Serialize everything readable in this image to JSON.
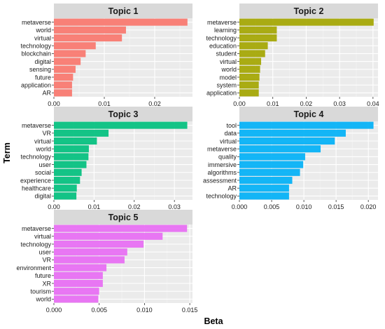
{
  "chart_data": {
    "type": "bar",
    "orientation": "horizontal",
    "xlabel": "Beta",
    "ylabel": "Term",
    "grid": true,
    "panels": [
      {
        "title": "Topic 1",
        "color": "#F8766D",
        "xlim": [
          0,
          0.0275
        ],
        "ticks": [
          0.0,
          0.01,
          0.02
        ],
        "tick_labels": [
          "0.00",
          "0.01",
          "0.02"
        ],
        "categories": [
          "metaverse",
          "world",
          "virtual",
          "technology",
          "blockchain",
          "digital",
          "sensing",
          "future",
          "application",
          "AR"
        ],
        "values": [
          0.0265,
          0.0143,
          0.0135,
          0.0083,
          0.0063,
          0.0053,
          0.0043,
          0.0038,
          0.0036,
          0.0036
        ]
      },
      {
        "title": "Topic 2",
        "color": "#A3A500",
        "xlim": [
          0,
          0.0415
        ],
        "ticks": [
          0.0,
          0.01,
          0.02,
          0.03,
          0.04
        ],
        "tick_labels": [
          "0.00",
          "0.01",
          "0.02",
          "0.03",
          "0.04"
        ],
        "categories": [
          "metaverse",
          "learning",
          "technology",
          "education",
          "student",
          "virtual",
          "world",
          "model",
          "system",
          "application"
        ],
        "values": [
          0.0402,
          0.0112,
          0.0112,
          0.0085,
          0.0077,
          0.0065,
          0.0062,
          0.006,
          0.0058,
          0.0058
        ]
      },
      {
        "title": "Topic 3",
        "color": "#00BF7D",
        "xlim": [
          0,
          0.0345
        ],
        "ticks": [
          0.0,
          0.01,
          0.02,
          0.03
        ],
        "tick_labels": [
          "0.00",
          "0.01",
          "0.02",
          "0.03"
        ],
        "categories": [
          "metaverse",
          "VR",
          "virtual",
          "world",
          "technology",
          "user",
          "social",
          "experience",
          "healthcare",
          "digital"
        ],
        "values": [
          0.0332,
          0.0136,
          0.0107,
          0.0087,
          0.0086,
          0.0081,
          0.0069,
          0.0065,
          0.0057,
          0.0056
        ]
      },
      {
        "title": "Topic 4",
        "color": "#00B0F6",
        "xlim": [
          0,
          0.0215
        ],
        "ticks": [
          0.0,
          0.005,
          0.01,
          0.015,
          0.02
        ],
        "tick_labels": [
          "0.000",
          "0.005",
          "0.010",
          "0.015",
          "0.020"
        ],
        "categories": [
          "tool",
          "data",
          "virtual",
          "metaverse",
          "quality",
          "immersive",
          "algorithms",
          "assessment",
          "AR",
          "technology"
        ],
        "values": [
          0.0208,
          0.0165,
          0.0148,
          0.0126,
          0.0102,
          0.0099,
          0.0094,
          0.0082,
          0.0077,
          0.0077
        ]
      },
      {
        "title": "Topic 5",
        "color": "#E76BF3",
        "xlim": [
          0,
          0.0153
        ],
        "ticks": [
          0.0,
          0.005,
          0.01,
          0.015
        ],
        "tick_labels": [
          "0.000",
          "0.005",
          "0.010",
          "0.015"
        ],
        "categories": [
          "metaverse",
          "virtual",
          "technology",
          "user",
          "VR",
          "environment",
          "future",
          "XR",
          "tourism",
          "world"
        ],
        "values": [
          0.0147,
          0.012,
          0.0099,
          0.0081,
          0.0078,
          0.0058,
          0.0054,
          0.0054,
          0.005,
          0.0049
        ]
      }
    ]
  }
}
